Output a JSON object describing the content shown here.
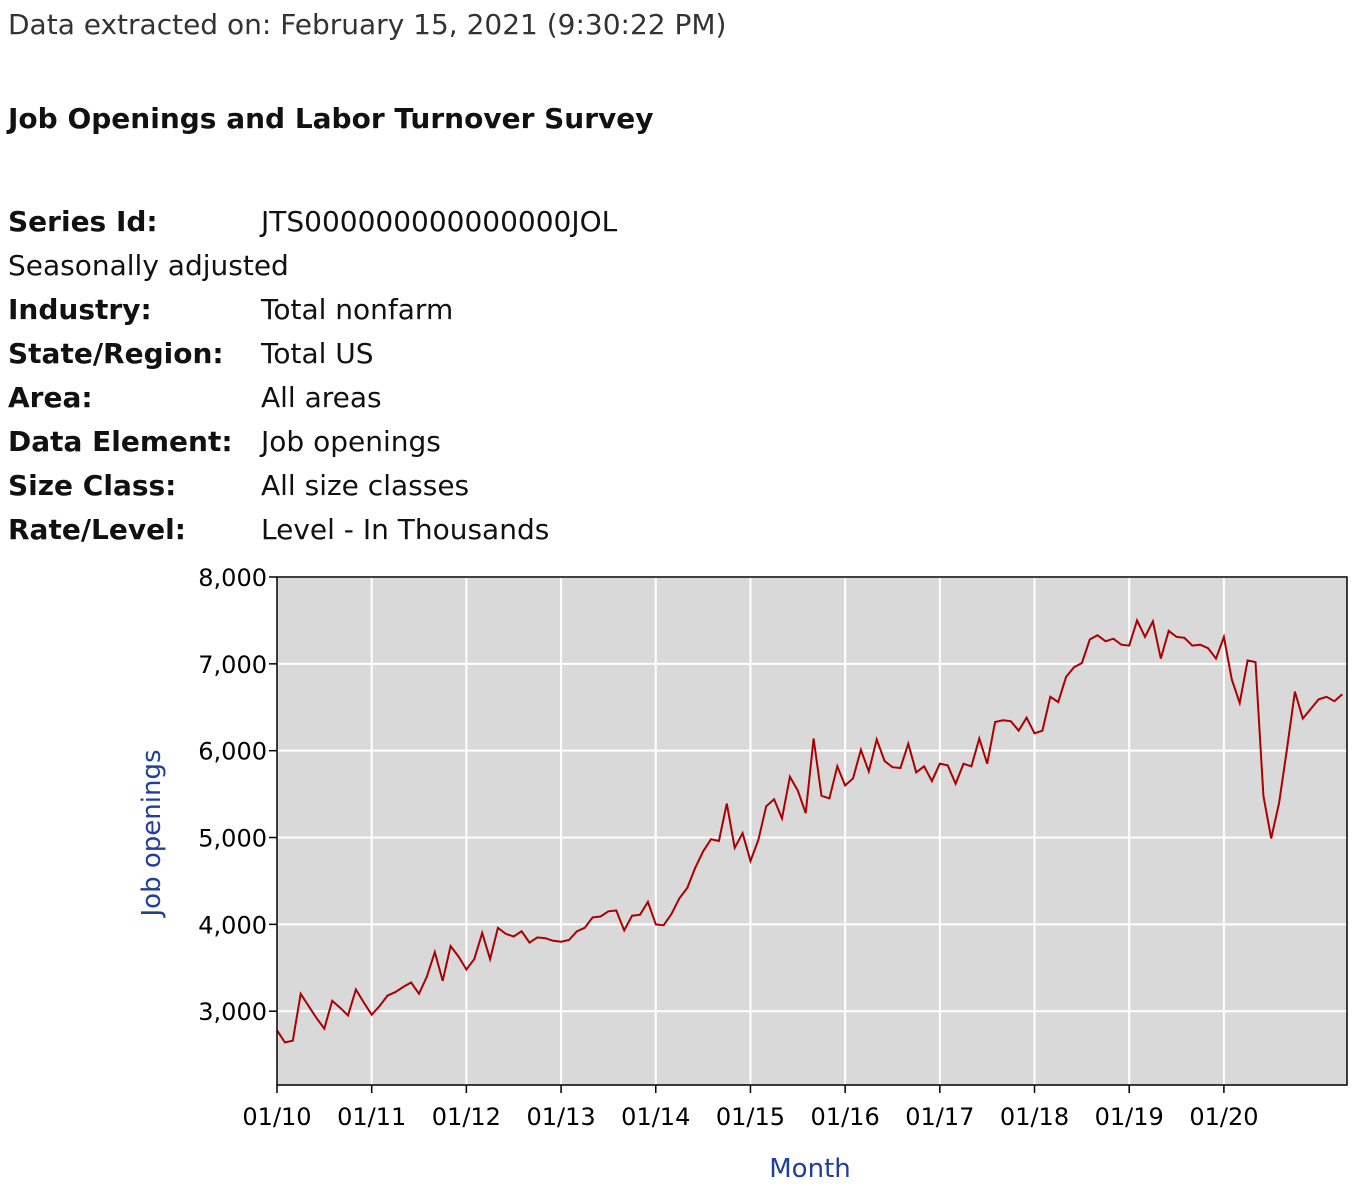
{
  "header": {
    "extracted": "Data extracted on: February 15, 2021 (9:30:22 PM)",
    "title": "Job Openings and Labor Turnover Survey"
  },
  "series_info": {
    "series_id_label": "Series Id:",
    "series_id_value": "JTS000000000000000JOL",
    "adjustment": "Seasonally adjusted",
    "industry_label": "Industry:",
    "industry_value": "Total nonfarm",
    "region_label": "State/Region:",
    "region_value": "Total US",
    "area_label": "Area:",
    "area_value": "All areas",
    "element_label": "Data Element:",
    "element_value": "Job openings",
    "size_label": "Size Class:",
    "size_value": "All size classes",
    "rate_label": "Rate/Level:",
    "rate_value": "Level - In Thousands"
  },
  "colors": {
    "line": "#aa0000",
    "plot_bg": "#d9d9d9",
    "grid": "#ffffff",
    "axis_title": "#1f3f9a"
  },
  "chart_data": {
    "type": "line",
    "xlabel": "Month",
    "ylabel": "Job openings",
    "x_start": "2010-01",
    "x_end": "2020-12",
    "x_ticks": [
      "01/10",
      "01/11",
      "01/12",
      "01/13",
      "01/14",
      "01/15",
      "01/16",
      "01/17",
      "01/18",
      "01/19",
      "01/20"
    ],
    "y_ticks": [
      "3,000",
      "4,000",
      "5,000",
      "6,000",
      "7,000",
      "8,000"
    ],
    "y_tick_values": [
      3000,
      4000,
      5000,
      6000,
      7000,
      8000
    ],
    "ylim": [
      2150,
      8000
    ],
    "grid": true,
    "series": [
      {
        "values": [
          2780,
          2640,
          2660,
          3200,
          3060,
          2920,
          2800,
          3120,
          3040,
          2950,
          3250,
          3100,
          2960,
          3060,
          3180,
          3220,
          3280,
          3330,
          3200,
          3400,
          3680,
          3350,
          3750,
          3630,
          3480,
          3600,
          3900,
          3600,
          3960,
          3890,
          3860,
          3920,
          3790,
          3850,
          3840,
          3810,
          3800,
          3820,
          3920,
          3960,
          4080,
          4090,
          4150,
          4160,
          3930,
          4100,
          4110,
          4260,
          4000,
          3990,
          4120,
          4300,
          4420,
          4650,
          4840,
          4980,
          4960,
          5390,
          4880,
          5050,
          4730,
          4970,
          5360,
          5440,
          5220,
          5700,
          5540,
          5280,
          6140,
          5480,
          5450,
          5820,
          5600,
          5680,
          6010,
          5760,
          6130,
          5880,
          5810,
          5800,
          6080,
          5750,
          5820,
          5650,
          5850,
          5830,
          5620,
          5850,
          5820,
          6140,
          5850,
          6330,
          6350,
          6340,
          6230,
          6380,
          6200,
          6230,
          6620,
          6560,
          6850,
          6960,
          7010,
          7280,
          7330,
          7260,
          7290,
          7220,
          7210,
          7500,
          7310,
          7490,
          7060,
          7380,
          7310,
          7300,
          7210,
          7220,
          7180,
          7060,
          7310,
          6820,
          6550,
          7040,
          7020,
          5480,
          4990,
          5400,
          6020,
          6680,
          6370,
          6480,
          6590,
          6620,
          6570,
          6650
        ]
      }
    ]
  }
}
